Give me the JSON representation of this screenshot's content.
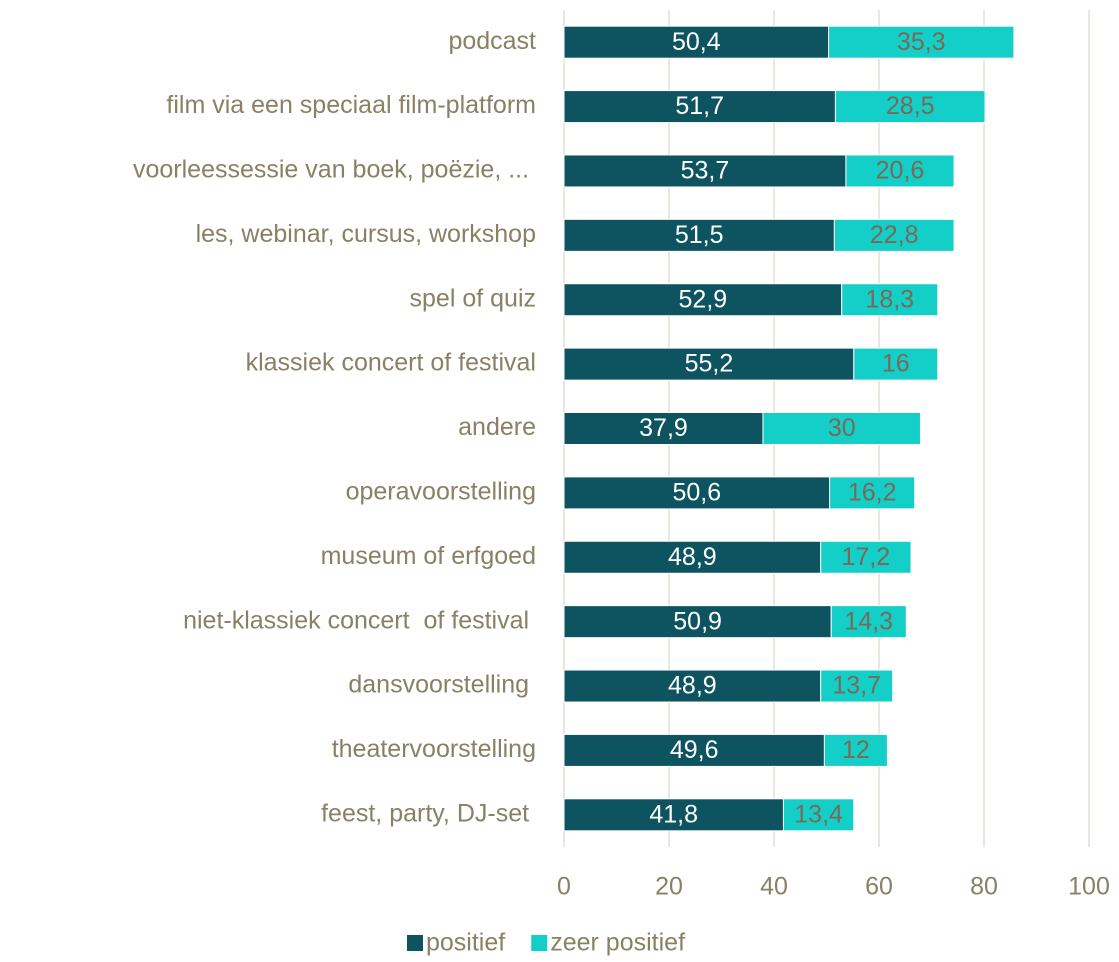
{
  "chart_data": {
    "type": "stacked-barh",
    "categories": [
      "podcast",
      "film via een speciaal film-platform",
      "voorleessessie van boek, poëzie, ... ",
      "les, webinar, cursus, workshop",
      "spel of quiz",
      "klassiek concert of festival",
      "andere",
      "operavoorstelling",
      "museum of erfgoed",
      "niet-klassiek concert  of festival ",
      "dansvoorstelling ",
      "theatervoorstelling",
      "feest, party, DJ-set "
    ],
    "series": [
      {
        "name": "positief",
        "color": "#0e5460",
        "label_color": "#ffffff",
        "values": [
          50.4,
          51.7,
          53.7,
          51.5,
          52.9,
          55.2,
          37.9,
          50.6,
          48.9,
          50.9,
          48.9,
          49.6,
          41.8
        ],
        "value_labels": [
          "50,4",
          "51,7",
          "53,7",
          "51,5",
          "52,9",
          "55,2",
          "37,9",
          "50,6",
          "48,9",
          "50,9",
          "48,9",
          "49,6",
          "41,8"
        ]
      },
      {
        "name": "zeer positief",
        "color": "#13cfc8",
        "label_color": "#7a6a55",
        "values": [
          35.3,
          28.5,
          20.6,
          22.8,
          18.3,
          16,
          30,
          16.2,
          17.2,
          14.3,
          13.7,
          12,
          13.4
        ],
        "value_labels": [
          "35,3",
          "28,5",
          "20,6",
          "22,8",
          "18,3",
          "16",
          "30",
          "16,2",
          "17,2",
          "14,3",
          "13,7",
          "12",
          "13,4"
        ]
      }
    ],
    "xlim": [
      0,
      100
    ],
    "xticks": [
      0,
      20,
      40,
      60,
      80,
      100
    ],
    "grid": true,
    "legend": "bottom"
  }
}
